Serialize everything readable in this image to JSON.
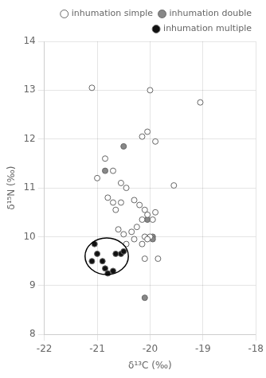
{
  "chart_data": {
    "type": "scatter",
    "xlabel": "δ¹³C (‰)",
    "ylabel": "δ¹⁵N (‰)",
    "series": [
      {
        "name": "inhumation simple",
        "color": "white",
        "values": [
          [
            -21.1,
            13.05
          ],
          [
            -19.05,
            12.75
          ],
          [
            -20.15,
            12.05
          ],
          [
            -20.05,
            12.15
          ],
          [
            -19.9,
            11.95
          ],
          [
            -20.85,
            11.6
          ],
          [
            -20.7,
            11.35
          ],
          [
            -21.0,
            11.2
          ],
          [
            -20.55,
            11.1
          ],
          [
            -20.45,
            11.0
          ],
          [
            -20.3,
            10.75
          ],
          [
            -20.2,
            10.65
          ],
          [
            -20.1,
            10.55
          ],
          [
            -20.05,
            10.45
          ],
          [
            -20.15,
            10.35
          ],
          [
            -20.25,
            10.2
          ],
          [
            -20.35,
            10.1
          ],
          [
            -20.1,
            10.0
          ],
          [
            -20.0,
            10.0
          ],
          [
            -19.95,
            10.35
          ],
          [
            -19.9,
            10.5
          ],
          [
            -19.55,
            11.05
          ],
          [
            -19.85,
            9.55
          ],
          [
            -20.1,
            9.55
          ],
          [
            -20.05,
            9.95
          ],
          [
            -20.15,
            9.85
          ],
          [
            -20.3,
            9.95
          ],
          [
            -20.45,
            9.85
          ],
          [
            -20.5,
            10.05
          ],
          [
            -20.6,
            10.15
          ],
          [
            -20.7,
            10.7
          ],
          [
            -20.8,
            10.8
          ],
          [
            -20.55,
            10.7
          ],
          [
            -20.65,
            10.55
          ],
          [
            -20.0,
            13.0
          ]
        ]
      },
      {
        "name": "inhumation double",
        "color": "#888888",
        "values": [
          [
            -20.85,
            11.35
          ],
          [
            -20.5,
            11.85
          ],
          [
            -20.05,
            10.35
          ],
          [
            -19.95,
            10.0
          ],
          [
            -19.95,
            9.95
          ],
          [
            -20.1,
            8.75
          ]
        ]
      },
      {
        "name": "inhumation multiple",
        "color": "#111111",
        "values": [
          [
            -21.05,
            9.85
          ],
          [
            -21.0,
            9.65
          ],
          [
            -21.1,
            9.5
          ],
          [
            -20.9,
            9.5
          ],
          [
            -20.85,
            9.35
          ],
          [
            -20.8,
            9.25
          ],
          [
            -20.7,
            9.3
          ],
          [
            -20.65,
            9.65
          ],
          [
            -20.55,
            9.65
          ],
          [
            -20.5,
            9.7
          ]
        ]
      }
    ],
    "ellipse": {
      "center": [
        -20.82,
        9.6
      ],
      "width": 0.82,
      "height": 0.75
    },
    "xlim": [
      -22,
      -18
    ],
    "ylim": [
      8,
      14
    ],
    "xticks": [
      -22,
      -21,
      -20,
      -19,
      -18
    ],
    "yticks": [
      8,
      9,
      10,
      11,
      12,
      13,
      14
    ],
    "grid": true,
    "legend": "upper right"
  }
}
